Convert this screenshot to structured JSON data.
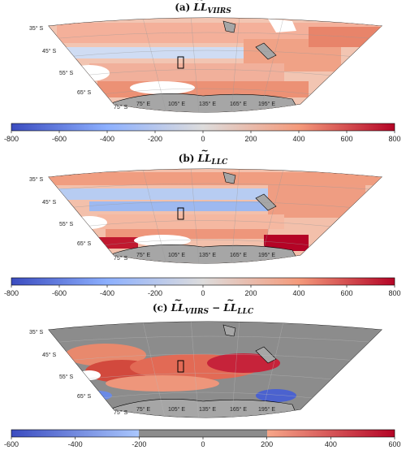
{
  "panels": [
    {
      "id": "a",
      "label": "(a)",
      "ll": "LL",
      "subscript": "VIIRS",
      "colorbar": {
        "ticks": [
          "-800",
          "-600",
          "-400",
          "-200",
          "0",
          "200",
          "400",
          "600",
          "800"
        ]
      }
    },
    {
      "id": "b",
      "label": "(b)",
      "ll": "LL",
      "subscript": "LLC",
      "colorbar": {
        "ticks": [
          "-800",
          "-600",
          "-400",
          "-200",
          "0",
          "200",
          "400",
          "600",
          "800"
        ]
      }
    },
    {
      "id": "c",
      "label": "(c)",
      "ll": "LL",
      "subscript": "VIIRS",
      "minus": "−",
      "ll2": "LL",
      "subscript2": "LLC",
      "colorbar": {
        "ticks": [
          "-600",
          "-400",
          "-200",
          "0",
          "200",
          "400",
          "600"
        ]
      }
    }
  ],
  "latitude_labels": [
    "35° S",
    "45° S",
    "55° S",
    "65° S",
    "75° S"
  ],
  "longitude_labels": [
    "75° E",
    "105° E",
    "135° E",
    "165° E",
    "195° E"
  ],
  "colors": {
    "blue": "#3b4cc0",
    "light_blue": "#aac7fd",
    "neutral": "#dddcdc",
    "light_red": "#f7a789",
    "red": "#b40426",
    "land_gray": "#a6a6a6",
    "masked_gray": "#8c8c8c"
  }
}
